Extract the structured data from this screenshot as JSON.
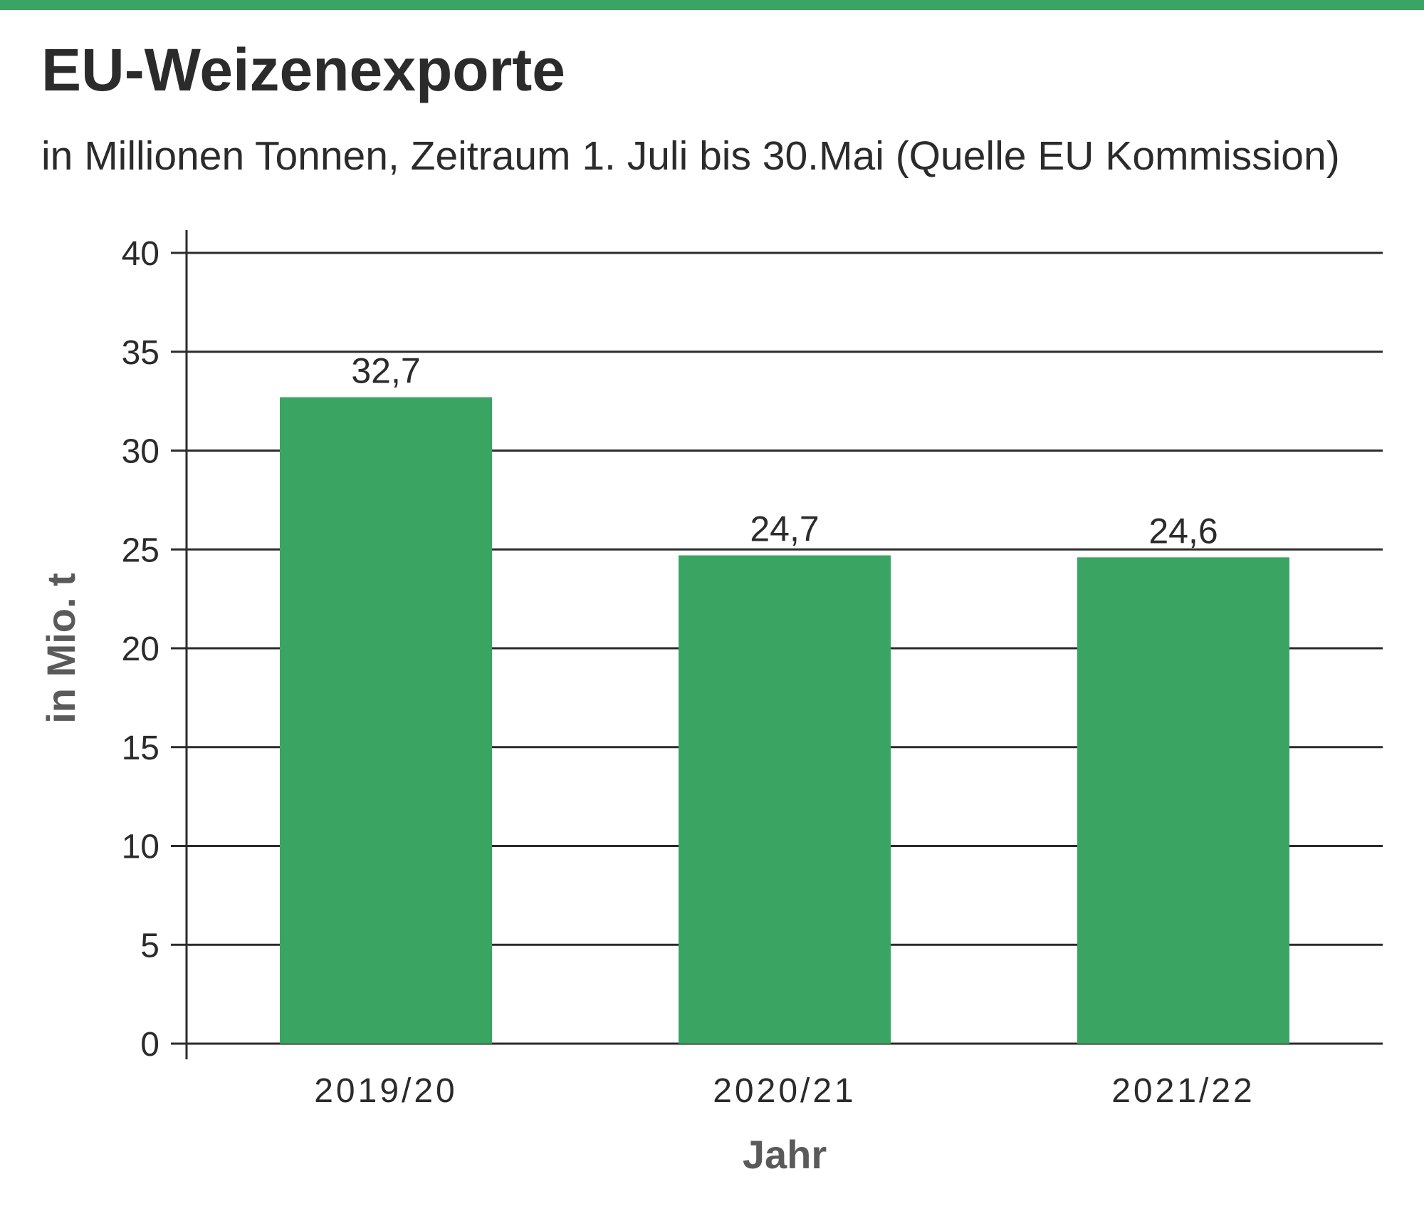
{
  "colors": {
    "accent": "#3aa563",
    "bar": "#3aa563",
    "grid": "#2b2b2b"
  },
  "header": {
    "title": "EU-Weizenexporte",
    "subtitle": "in Millionen Tonnen, Zeitraum 1. Juli bis 30.Mai (Quelle EU Kommission)"
  },
  "chart_data": {
    "type": "bar",
    "title": "EU-Weizenexporte",
    "subtitle": "in Millionen Tonnen, Zeitraum 1. Juli bis 30.Mai (Quelle EU Kommission)",
    "categories": [
      "2019/20",
      "2020/21",
      "2021/22"
    ],
    "values": [
      32.7,
      24.7,
      24.6
    ],
    "value_labels": [
      "32,7",
      "24,7",
      "24,6"
    ],
    "xlabel": "Jahr",
    "ylabel": "in Mio. t",
    "ylim": [
      0,
      40
    ],
    "yticks": [
      0,
      5,
      10,
      15,
      20,
      25,
      30,
      35,
      40
    ],
    "grid": true,
    "legend": "none"
  }
}
